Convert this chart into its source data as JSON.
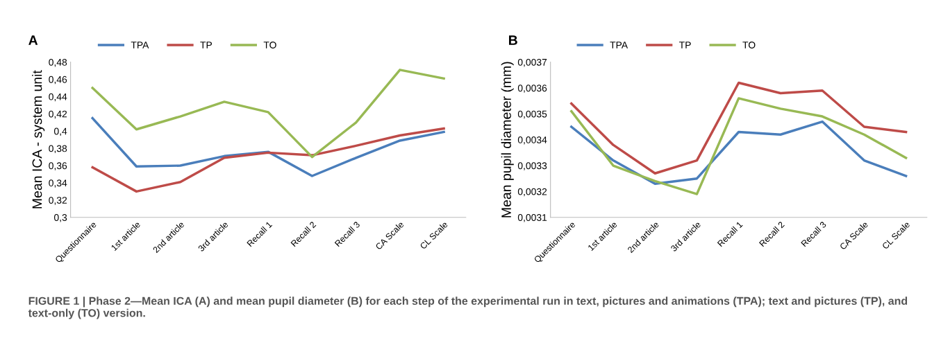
{
  "chart_data": [
    {
      "type": "line",
      "title": "A",
      "ylabel": "Mean ICA - system unit",
      "categories": [
        "Questionnaire",
        "1st article",
        "2nd article",
        "3rd article",
        "Recall 1",
        "Recall 2",
        "Recall 3",
        "CA Scale",
        "CL Scale"
      ],
      "series": [
        {
          "name": "TPA",
          "color": "#4a7ebb",
          "values": [
            0.415,
            0.359,
            0.36,
            0.371,
            0.376,
            0.348,
            0.369,
            0.389,
            0.399
          ]
        },
        {
          "name": "TP",
          "color": "#be4b48",
          "values": [
            0.358,
            0.33,
            0.341,
            0.369,
            0.375,
            0.372,
            0.383,
            0.395,
            0.403
          ]
        },
        {
          "name": "TO",
          "color": "#98b954",
          "values": [
            0.45,
            0.402,
            0.417,
            0.434,
            0.422,
            0.37,
            0.41,
            0.471,
            0.461
          ]
        }
      ],
      "ylim": [
        0.3,
        0.48
      ],
      "yticks": [
        {
          "value": 0.3,
          "label": "0,3"
        },
        {
          "value": 0.32,
          "label": "0,32"
        },
        {
          "value": 0.34,
          "label": "0,34"
        },
        {
          "value": 0.36,
          "label": "0,36"
        },
        {
          "value": 0.38,
          "label": "0,38"
        },
        {
          "value": 0.4,
          "label": "0,4"
        },
        {
          "value": 0.42,
          "label": "0,42"
        },
        {
          "value": 0.44,
          "label": "0,44"
        },
        {
          "value": 0.46,
          "label": "0,46"
        },
        {
          "value": 0.48,
          "label": "0,48"
        }
      ],
      "grid": false,
      "legend": "top",
      "marker": "none",
      "line_style": "solid",
      "annotations": [
        "FIGURE 1 | Phase 2—Mean ICA (A) and mean pupil diameter (B) for each step of the experimental run in text, pictures and animations (TPA); text and pictures (TP), and text-only (TO) version."
      ]
    },
    {
      "type": "line",
      "title": "B",
      "ylabel": "Mean pupil diameter (mm)",
      "categories": [
        "Questionnaire",
        "1st article",
        "2nd article",
        "3rd article",
        "Recall 1",
        "Recall 2",
        "Recall 3",
        "CA Scale",
        "CL Scale"
      ],
      "series": [
        {
          "name": "TPA",
          "color": "#4a7ebb",
          "values": [
            0.00345,
            0.00332,
            0.00323,
            0.00325,
            0.00343,
            0.00342,
            0.00347,
            0.00332,
            0.00326
          ]
        },
        {
          "name": "TP",
          "color": "#be4b48",
          "values": [
            0.00354,
            0.00338,
            0.00327,
            0.00332,
            0.00362,
            0.00358,
            0.00359,
            0.00345,
            0.00343
          ]
        },
        {
          "name": "TO",
          "color": "#98b954",
          "values": [
            0.00351,
            0.0033,
            0.00324,
            0.00319,
            0.00356,
            0.00352,
            0.00349,
            0.00342,
            0.00333
          ]
        }
      ],
      "ylim": [
        0.0031,
        0.0037
      ],
      "yticks": [
        {
          "value": 0.0031,
          "label": "0,0031"
        },
        {
          "value": 0.0032,
          "label": "0,0032"
        },
        {
          "value": 0.0033,
          "label": "0,0033"
        },
        {
          "value": 0.0034,
          "label": "0,0034"
        },
        {
          "value": 0.0035,
          "label": "0,0035"
        },
        {
          "value": 0.0036,
          "label": "0,0036"
        },
        {
          "value": 0.0037,
          "label": "0,0037"
        }
      ],
      "grid": false,
      "legend": "top",
      "marker": "none",
      "line_style": "solid"
    }
  ]
}
